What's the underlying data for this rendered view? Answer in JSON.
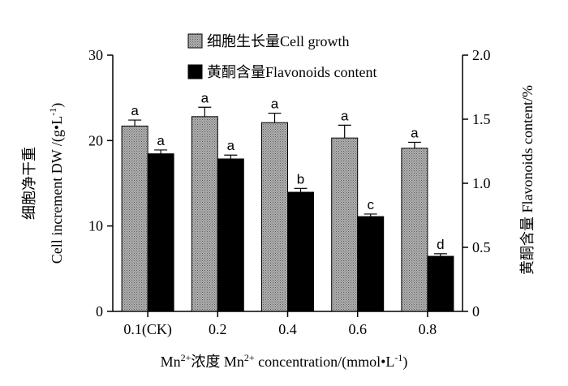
{
  "chart_data": {
    "type": "bar",
    "categories": [
      "0.1(CK)",
      "0.2",
      "0.4",
      "0.6",
      "0.8"
    ],
    "left_axis": {
      "label_cn": "细胞净干重",
      "label_en": "Cell increment DW /(g",
      "label_unit_tail": "L",
      "label_sup": "-1",
      "label_close": ")",
      "ylim": [
        0,
        30
      ],
      "ticks": [
        0,
        10,
        20,
        30
      ]
    },
    "right_axis": {
      "label": "黄酮含量 Flavonoids content/%",
      "ylim": [
        0,
        2.0
      ],
      "ticks": [
        "0",
        "0.5",
        "1.0",
        "1.5",
        "2.0"
      ],
      "tick_values": [
        0,
        0.5,
        1.0,
        1.5,
        2.0
      ]
    },
    "x_axis": {
      "label_pre": "Mn",
      "label_sup1": "2+",
      "label_mid": "浓度  Mn",
      "label_sup2": "2+",
      "label_tail": " concentration/(mmol",
      "label_tail2": "L",
      "label_sup3": "-1",
      "label_close": ")"
    },
    "series": [
      {
        "name": "细胞生长量Cell growth",
        "axis": "left",
        "color": "#a8a8a8",
        "pattern": "dotted-gray",
        "values": [
          21.7,
          22.8,
          22.1,
          20.3,
          19.1
        ],
        "errors": [
          0.7,
          1.1,
          1.1,
          1.5,
          0.7
        ],
        "labels": [
          "a",
          "a",
          "a",
          "a",
          "a"
        ]
      },
      {
        "name": "黄酮含量Flavonoids content",
        "axis": "right",
        "color": "#000000",
        "pattern": "solid",
        "values": [
          1.23,
          1.19,
          0.93,
          0.74,
          0.43
        ],
        "errors": [
          0.03,
          0.03,
          0.03,
          0.02,
          0.02
        ],
        "labels": [
          "a",
          "a",
          "b",
          "c",
          "d"
        ]
      }
    ],
    "legend_position": "top",
    "grid": false
  }
}
